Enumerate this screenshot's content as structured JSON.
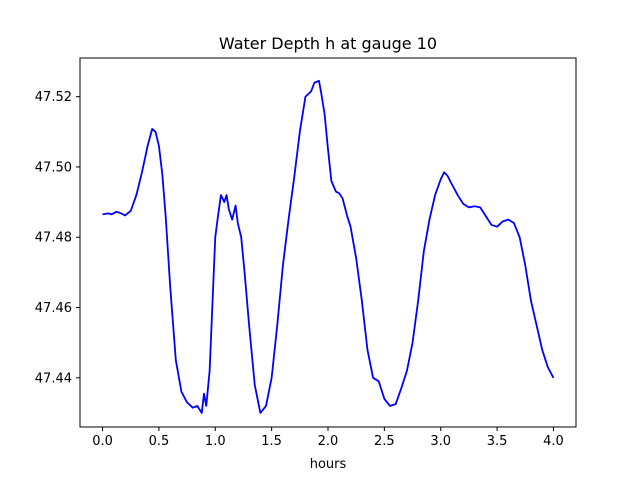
{
  "chart_data": {
    "type": "line",
    "title": "Water Depth h at gauge 10",
    "xlabel": "hours",
    "ylabel": "",
    "xlim": [
      -0.2,
      4.2
    ],
    "ylim": [
      47.426,
      47.531
    ],
    "grid": false,
    "xticks": [
      0.0,
      0.5,
      1.0,
      1.5,
      2.0,
      2.5,
      3.0,
      3.5,
      4.0
    ],
    "xtick_labels": [
      "0.0",
      "0.5",
      "1.0",
      "1.5",
      "2.0",
      "2.5",
      "3.0",
      "3.5",
      "4.0"
    ],
    "yticks": [
      47.44,
      47.46,
      47.48,
      47.5,
      47.52
    ],
    "ytick_labels": [
      "47.44",
      "47.46",
      "47.48",
      "47.50",
      "47.52"
    ],
    "series": [
      {
        "color": "#0000ff",
        "x": [
          0.0,
          0.05,
          0.08,
          0.12,
          0.15,
          0.2,
          0.25,
          0.3,
          0.35,
          0.4,
          0.44,
          0.47,
          0.5,
          0.53,
          0.56,
          0.6,
          0.65,
          0.7,
          0.75,
          0.8,
          0.84,
          0.88,
          0.9,
          0.92,
          0.95,
          0.98,
          1.0,
          1.02,
          1.05,
          1.08,
          1.1,
          1.12,
          1.15,
          1.18,
          1.2,
          1.23,
          1.26,
          1.3,
          1.35,
          1.4,
          1.45,
          1.5,
          1.55,
          1.6,
          1.65,
          1.7,
          1.75,
          1.8,
          1.85,
          1.88,
          1.92,
          1.94,
          1.97,
          2.0,
          2.03,
          2.07,
          2.1,
          2.13,
          2.17,
          2.2,
          2.25,
          2.3,
          2.35,
          2.4,
          2.45,
          2.5,
          2.55,
          2.6,
          2.65,
          2.7,
          2.75,
          2.8,
          2.85,
          2.9,
          2.95,
          3.0,
          3.03,
          3.06,
          3.1,
          3.15,
          3.2,
          3.25,
          3.3,
          3.35,
          3.4,
          3.45,
          3.5,
          3.55,
          3.6,
          3.65,
          3.7,
          3.75,
          3.8,
          3.85,
          3.9,
          3.95,
          4.0
        ],
        "y": [
          47.4865,
          47.4868,
          47.4865,
          47.4872,
          47.487,
          47.4862,
          47.4875,
          47.492,
          47.4985,
          47.506,
          47.5108,
          47.51,
          47.506,
          47.498,
          47.486,
          47.466,
          47.445,
          47.436,
          47.433,
          47.4315,
          47.432,
          47.43,
          47.4355,
          47.432,
          47.442,
          47.465,
          47.48,
          47.485,
          47.492,
          47.49,
          47.492,
          47.488,
          47.485,
          47.489,
          47.484,
          47.48,
          47.47,
          47.455,
          47.438,
          47.43,
          47.432,
          47.44,
          47.455,
          47.472,
          47.485,
          47.497,
          47.51,
          47.52,
          47.5215,
          47.524,
          47.5245,
          47.521,
          47.515,
          47.505,
          47.496,
          47.493,
          47.4925,
          47.491,
          47.486,
          47.483,
          47.474,
          47.462,
          47.448,
          47.44,
          47.439,
          47.434,
          47.432,
          47.4325,
          47.437,
          47.442,
          47.45,
          47.462,
          47.476,
          47.485,
          47.492,
          47.4965,
          47.4985,
          47.4975,
          47.495,
          47.492,
          47.4895,
          47.4885,
          47.4888,
          47.4885,
          47.486,
          47.4835,
          47.483,
          47.4845,
          47.485,
          47.484,
          47.48,
          47.472,
          47.462,
          47.455,
          47.448,
          47.443,
          47.44
        ]
      }
    ]
  }
}
